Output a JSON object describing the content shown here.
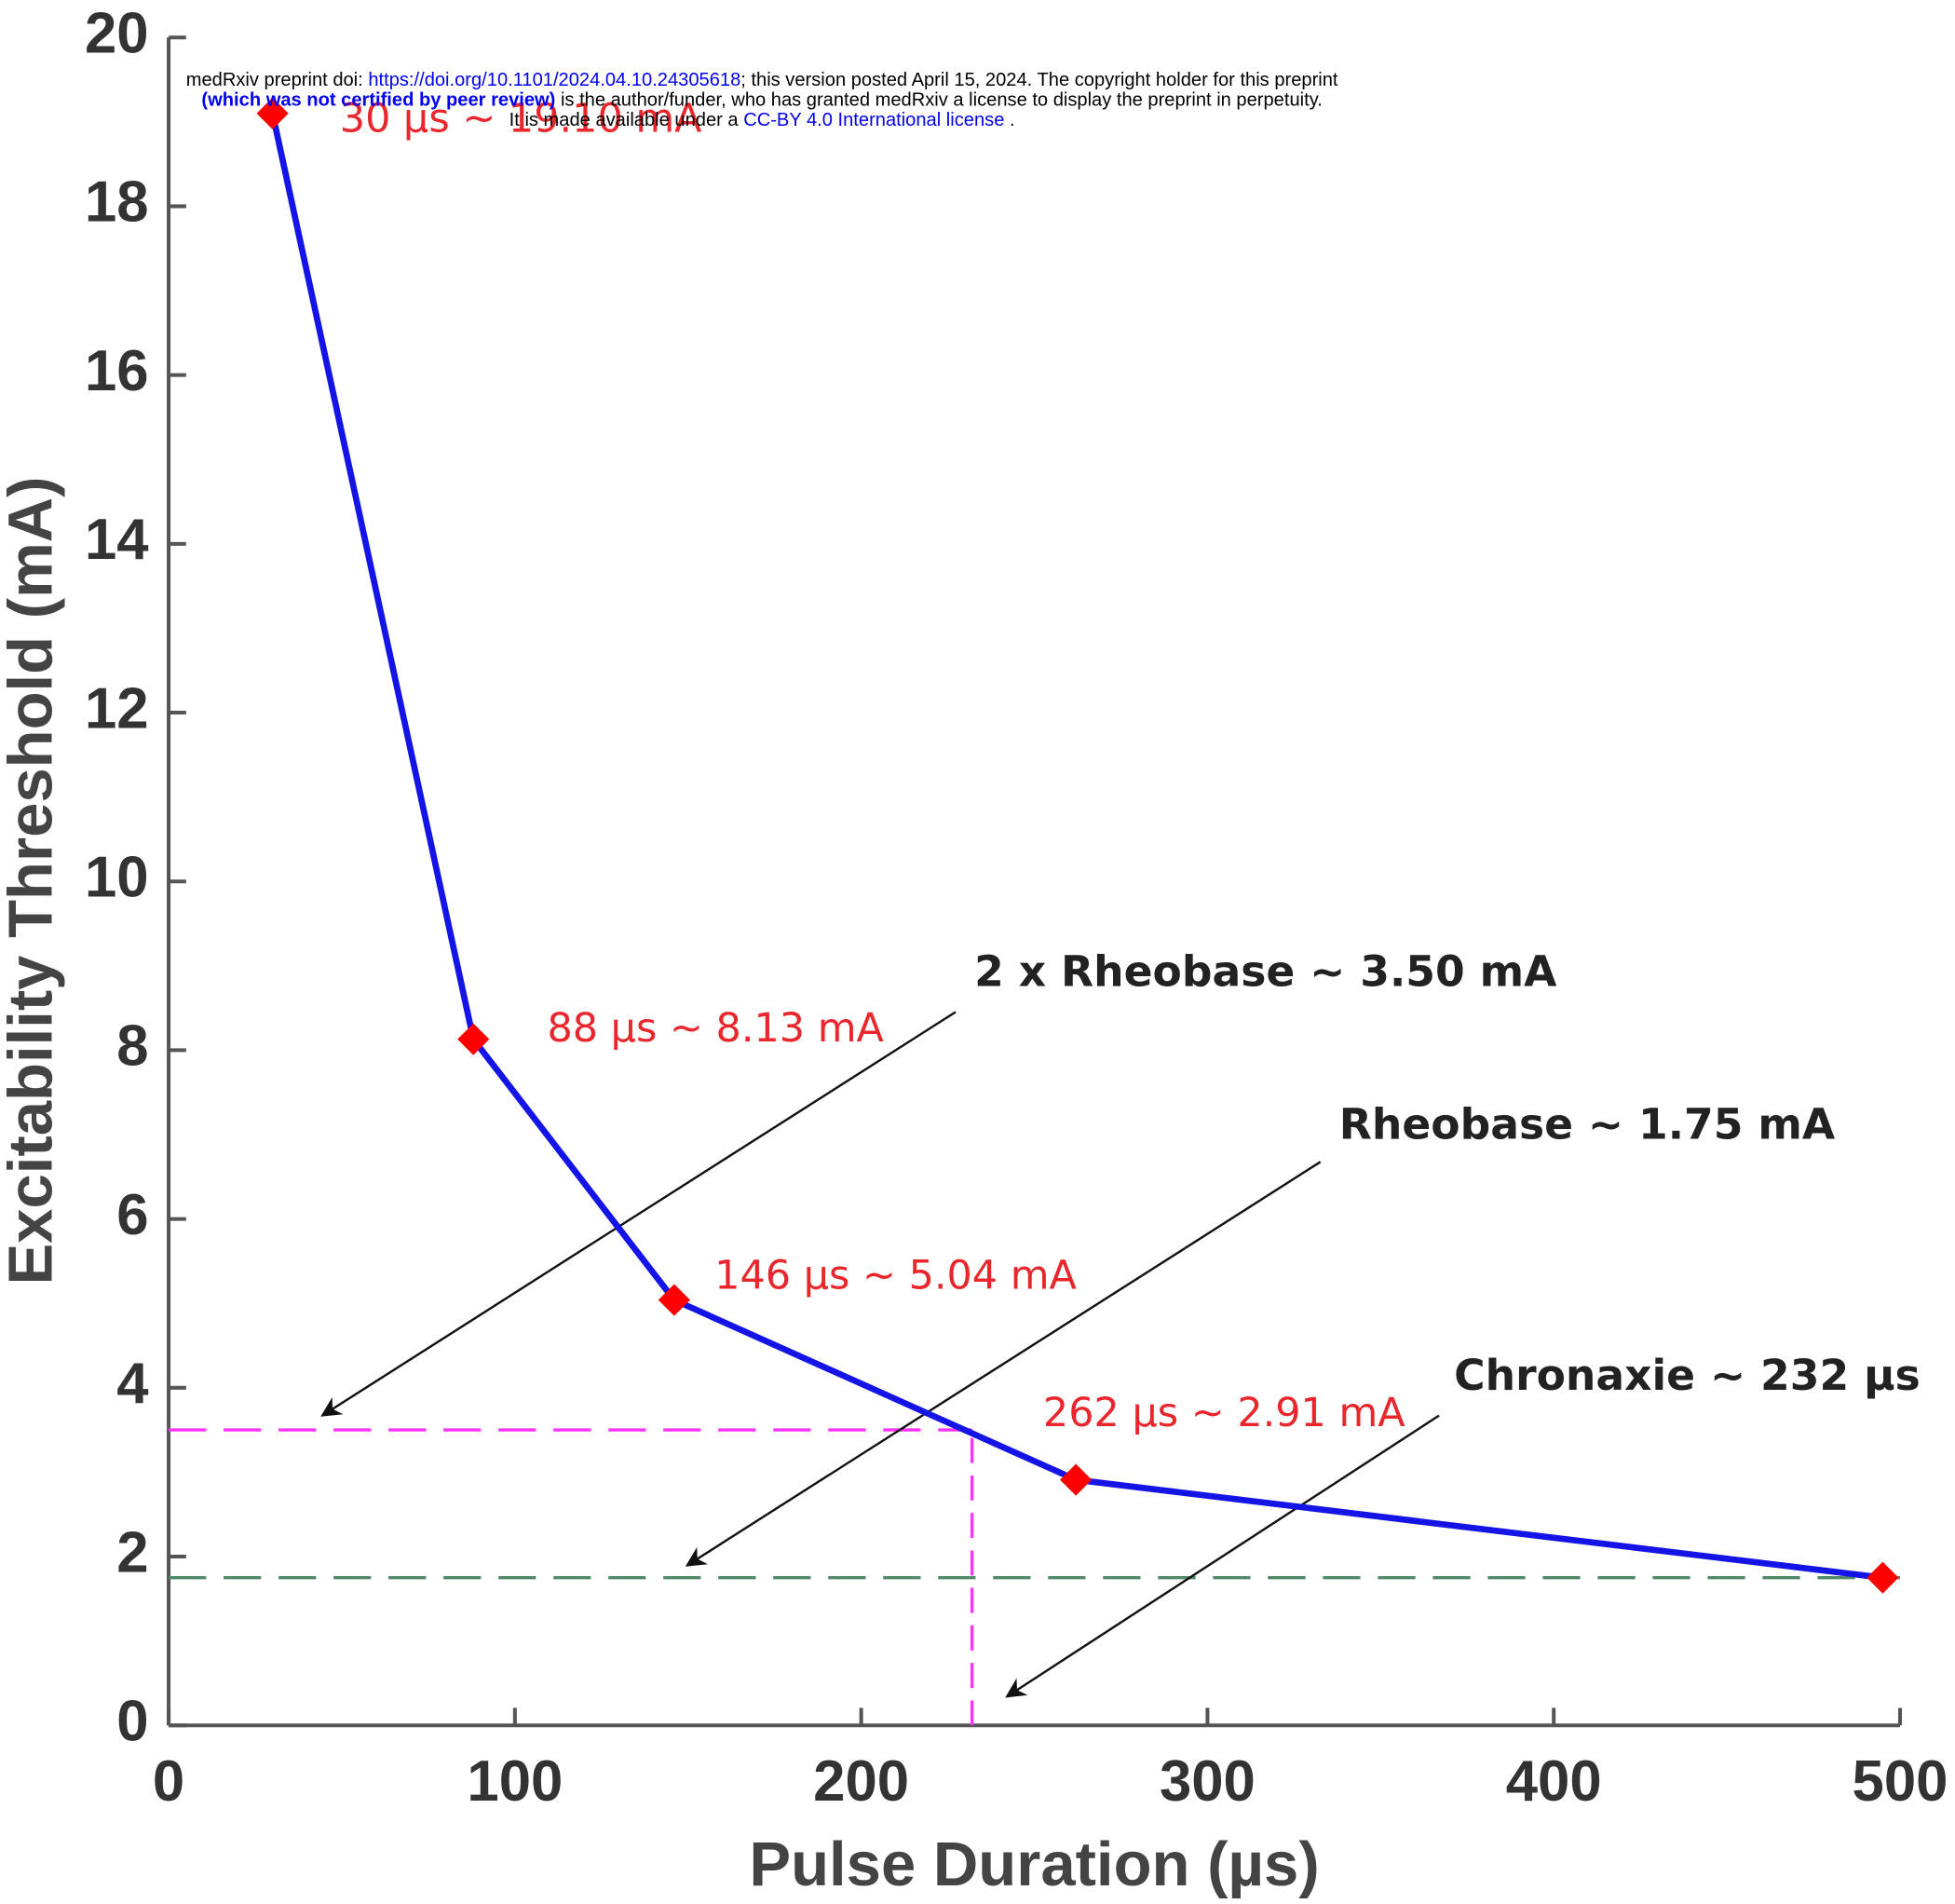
{
  "preprint_notice": {
    "line1_prefix": "medRxiv preprint doi: ",
    "doi_link": "https://doi.org/10.1101/2024.04.10.24305618",
    "line1_suffix": "; this version posted April 15, 2024. The copyright holder for this preprint",
    "line2_bold": "(which was not certified by peer review)",
    "line2_rest": " is the author/funder, who has granted medRxiv a license to display the preprint in perpetuity.",
    "line3_prefix": "It is made available under a ",
    "license_link": "CC-BY 4.0 International license",
    "line3_suffix": " ."
  },
  "chart_data": {
    "type": "line",
    "x_label": "Pulse Duration (µs)",
    "y_label": "Excitability Threshold (mA)",
    "x": [
      30,
      88,
      146,
      262,
      495
    ],
    "series": [
      {
        "color": "#1414e6",
        "marker_color": "#ff0000",
        "values": [
          19.1,
          8.13,
          5.04,
          2.91,
          1.75
        ],
        "value_labels": [
          "30 µs ~ 19.10 mA",
          "88 µs ~ 8.13 mA",
          "146 µs ~ 5.04 mA",
          "262 µs ~ 2.91 mA",
          null
        ]
      }
    ],
    "xlim": [
      0,
      500
    ],
    "xticks": [
      0,
      100,
      200,
      300,
      400,
      500
    ],
    "ylim": [
      0,
      20
    ],
    "yticks": [
      0,
      2,
      4,
      6,
      8,
      10,
      12,
      14,
      16,
      18,
      20
    ],
    "reference_lines": [
      {
        "label": "2 x Rheobase ~ 3.50 mA",
        "y": 3.5,
        "color": "#ff33ff"
      },
      {
        "label": "Rheobase ~ 1.75 mA",
        "y": 1.75,
        "color": "#4f8a68"
      },
      {
        "label": "Chronaxie ~ 232 µs",
        "x": 232,
        "color": "#ff33ff"
      }
    ]
  }
}
